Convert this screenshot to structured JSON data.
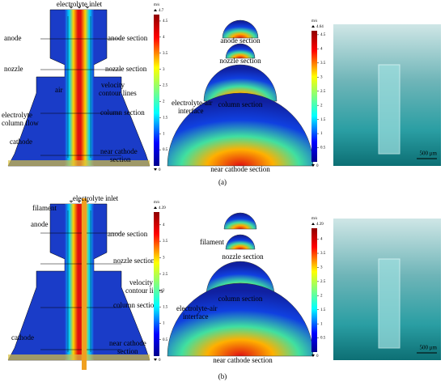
{
  "figure": {
    "panels": [
      {
        "caption": "(a)",
        "simulation": {
          "labels": [
            "electrolyte inlet",
            "anode",
            "anode section",
            "nozzle",
            "nozzle section",
            "air",
            "velocity",
            "contour lines",
            "column section",
            "electrolyte",
            "column flow",
            "cathode",
            "near cathode",
            "section"
          ]
        },
        "colorbar_left": {
          "unit": "m/s",
          "max": "4.7",
          "ticks": [
            "4.5",
            "4",
            "3.5",
            "3",
            "2.5",
            "2",
            "1.5",
            "1",
            "0.5"
          ],
          "min": "0"
        },
        "sections": {
          "labels": [
            "anode section",
            "nozzle section",
            "electrolyte-air",
            "interface",
            "column section",
            "near cathode section"
          ]
        },
        "colorbar_right": {
          "unit": "m/s",
          "max": "4.64",
          "ticks": [
            "4.5",
            "4",
            "3.5",
            "3",
            "2.5",
            "2",
            "1.5",
            "1",
            "0.5"
          ],
          "min": "0"
        },
        "scale_bar": "500 μm"
      },
      {
        "caption": "(b)",
        "simulation": {
          "labels": [
            "electrolyte inlet",
            "filament",
            "anode",
            "anode section",
            "nozzle section",
            "velocity",
            "contour lines",
            "column section",
            "cathode",
            "near cathode",
            "section"
          ]
        },
        "colorbar_left": {
          "unit": "m/s",
          "max": "4.39",
          "ticks": [
            "4",
            "3.5",
            "3",
            "2.5",
            "2",
            "1.5",
            "1",
            "0.5"
          ],
          "min": "0"
        },
        "sections": {
          "labels": [
            "filament",
            "nozzle section",
            "column section",
            "electrolyte-air",
            "interface",
            "near cathode section"
          ]
        },
        "colorbar_right": {
          "unit": "m/s",
          "max": "4.39",
          "ticks": [
            "4",
            "3.5",
            "3",
            "2.5",
            "2",
            "1.5",
            "1",
            "0.5"
          ],
          "min": "0"
        },
        "scale_bar": "500 μm"
      }
    ]
  }
}
